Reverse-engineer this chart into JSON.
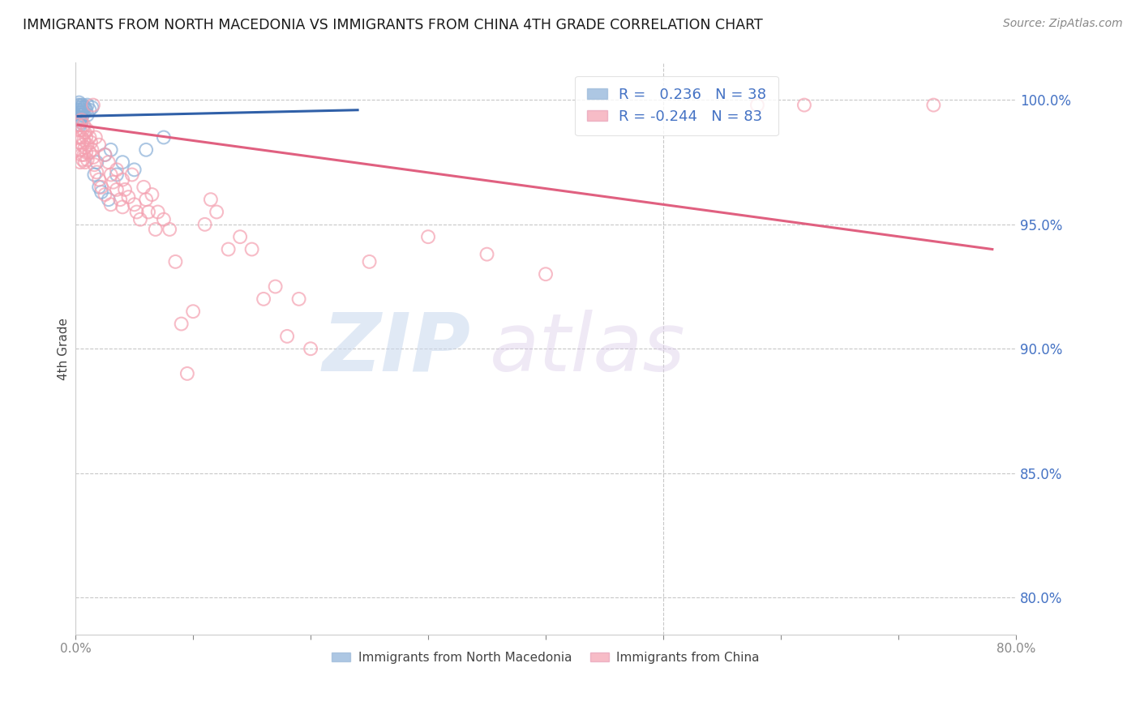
{
  "title": "IMMIGRANTS FROM NORTH MACEDONIA VS IMMIGRANTS FROM CHINA 4TH GRADE CORRELATION CHART",
  "source": "Source: ZipAtlas.com",
  "ylabel": "4th Grade",
  "ytick_labels": [
    "100.0%",
    "95.0%",
    "90.0%",
    "85.0%",
    "80.0%"
  ],
  "ytick_values": [
    1.0,
    0.95,
    0.9,
    0.85,
    0.8
  ],
  "xlim": [
    0.0,
    0.8
  ],
  "ylim": [
    0.785,
    1.015
  ],
  "r_blue": 0.236,
  "n_blue": 38,
  "r_pink": -0.244,
  "n_pink": 83,
  "legend_label_blue": "Immigrants from North Macedonia",
  "legend_label_pink": "Immigrants from China",
  "blue_color": "#8ab0d8",
  "pink_color": "#f4a0b0",
  "blue_line_color": "#3060a8",
  "pink_line_color": "#e06080",
  "blue_scatter": [
    [
      0.002,
      0.998
    ],
    [
      0.002,
      0.996
    ],
    [
      0.003,
      0.999
    ],
    [
      0.003,
      0.997
    ],
    [
      0.003,
      0.995
    ],
    [
      0.003,
      0.993
    ],
    [
      0.004,
      0.998
    ],
    [
      0.004,
      0.996
    ],
    [
      0.004,
      0.994
    ],
    [
      0.004,
      0.992
    ],
    [
      0.004,
      0.99
    ],
    [
      0.005,
      0.997
    ],
    [
      0.005,
      0.995
    ],
    [
      0.005,
      0.993
    ],
    [
      0.005,
      0.991
    ],
    [
      0.006,
      0.998
    ],
    [
      0.006,
      0.996
    ],
    [
      0.006,
      0.994
    ],
    [
      0.007,
      0.997
    ],
    [
      0.007,
      0.995
    ],
    [
      0.008,
      0.997
    ],
    [
      0.009,
      0.996
    ],
    [
      0.01,
      0.998
    ],
    [
      0.01,
      0.994
    ],
    [
      0.012,
      0.996
    ],
    [
      0.014,
      0.997
    ],
    [
      0.016,
      0.97
    ],
    [
      0.018,
      0.975
    ],
    [
      0.02,
      0.965
    ],
    [
      0.022,
      0.963
    ],
    [
      0.025,
      0.978
    ],
    [
      0.028,
      0.96
    ],
    [
      0.03,
      0.98
    ],
    [
      0.035,
      0.97
    ],
    [
      0.04,
      0.975
    ],
    [
      0.05,
      0.972
    ],
    [
      0.06,
      0.98
    ],
    [
      0.075,
      0.985
    ]
  ],
  "pink_scatter": [
    [
      0.002,
      0.99
    ],
    [
      0.003,
      0.985
    ],
    [
      0.003,
      0.983
    ],
    [
      0.004,
      0.988
    ],
    [
      0.004,
      0.98
    ],
    [
      0.004,
      0.975
    ],
    [
      0.005,
      0.992
    ],
    [
      0.005,
      0.985
    ],
    [
      0.005,
      0.978
    ],
    [
      0.006,
      0.988
    ],
    [
      0.006,
      0.982
    ],
    [
      0.006,
      0.976
    ],
    [
      0.007,
      0.99
    ],
    [
      0.007,
      0.984
    ],
    [
      0.007,
      0.978
    ],
    [
      0.008,
      0.987
    ],
    [
      0.008,
      0.981
    ],
    [
      0.008,
      0.975
    ],
    [
      0.009,
      0.985
    ],
    [
      0.009,
      0.979
    ],
    [
      0.01,
      0.988
    ],
    [
      0.01,
      0.982
    ],
    [
      0.01,
      0.976
    ],
    [
      0.012,
      0.985
    ],
    [
      0.012,
      0.979
    ],
    [
      0.013,
      0.983
    ],
    [
      0.014,
      0.98
    ],
    [
      0.015,
      0.998
    ],
    [
      0.015,
      0.977
    ],
    [
      0.016,
      0.974
    ],
    [
      0.017,
      0.985
    ],
    [
      0.018,
      0.971
    ],
    [
      0.02,
      0.982
    ],
    [
      0.02,
      0.968
    ],
    [
      0.022,
      0.965
    ],
    [
      0.025,
      0.978
    ],
    [
      0.025,
      0.962
    ],
    [
      0.028,
      0.975
    ],
    [
      0.03,
      0.97
    ],
    [
      0.03,
      0.958
    ],
    [
      0.032,
      0.967
    ],
    [
      0.035,
      0.972
    ],
    [
      0.035,
      0.964
    ],
    [
      0.038,
      0.96
    ],
    [
      0.04,
      0.968
    ],
    [
      0.04,
      0.957
    ],
    [
      0.042,
      0.964
    ],
    [
      0.045,
      0.961
    ],
    [
      0.048,
      0.97
    ],
    [
      0.05,
      0.958
    ],
    [
      0.052,
      0.955
    ],
    [
      0.055,
      0.952
    ],
    [
      0.058,
      0.965
    ],
    [
      0.06,
      0.96
    ],
    [
      0.062,
      0.955
    ],
    [
      0.065,
      0.962
    ],
    [
      0.068,
      0.948
    ],
    [
      0.07,
      0.955
    ],
    [
      0.075,
      0.952
    ],
    [
      0.08,
      0.948
    ],
    [
      0.085,
      0.935
    ],
    [
      0.09,
      0.91
    ],
    [
      0.095,
      0.89
    ],
    [
      0.1,
      0.915
    ],
    [
      0.11,
      0.95
    ],
    [
      0.115,
      0.96
    ],
    [
      0.12,
      0.955
    ],
    [
      0.13,
      0.94
    ],
    [
      0.14,
      0.945
    ],
    [
      0.15,
      0.94
    ],
    [
      0.16,
      0.92
    ],
    [
      0.17,
      0.925
    ],
    [
      0.18,
      0.905
    ],
    [
      0.19,
      0.92
    ],
    [
      0.2,
      0.9
    ],
    [
      0.25,
      0.935
    ],
    [
      0.3,
      0.945
    ],
    [
      0.35,
      0.938
    ],
    [
      0.4,
      0.93
    ],
    [
      0.58,
      0.998
    ],
    [
      0.62,
      0.998
    ],
    [
      0.73,
      0.998
    ]
  ],
  "blue_line": [
    [
      0.002,
      0.9935
    ],
    [
      0.24,
      0.996
    ]
  ],
  "pink_line": [
    [
      0.002,
      0.99
    ],
    [
      0.78,
      0.94
    ]
  ],
  "watermark_zip": "ZIP",
  "watermark_atlas": "atlas",
  "background_color": "#ffffff",
  "grid_color": "#c8c8c8"
}
